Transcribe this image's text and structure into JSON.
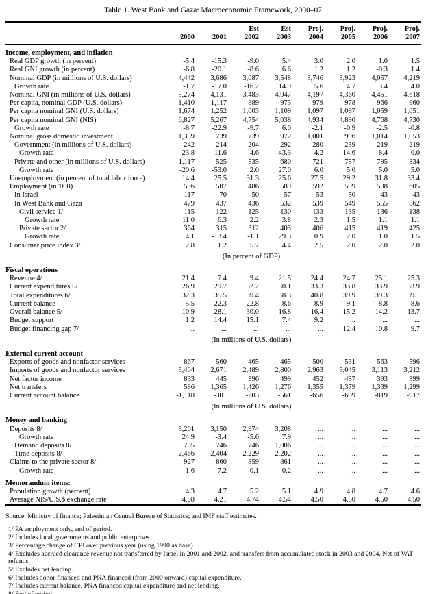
{
  "title": "Table 1. West Bank and Gaza: Macroeconomic Framework, 2000–07",
  "header": {
    "column_groups": [
      "",
      "",
      "Est",
      "Est",
      "Proj.",
      "Proj.",
      "Proj.",
      "Proj."
    ],
    "years": [
      "2000",
      "2001",
      "2002",
      "2003",
      "2004",
      "2005",
      "2006",
      "2007"
    ]
  },
  "sections": [
    {
      "unit_note": null,
      "title": "Income, employment, and inflation",
      "rows": [
        {
          "label": "Real GDP growth (in percent)",
          "indent": 1,
          "values": [
            "-5.4",
            "-15.3",
            "-9.0",
            "5.4",
            "3.0",
            "2.0",
            "1.0",
            "1.5"
          ]
        },
        {
          "label": "Real GNI growth (in percent)",
          "indent": 1,
          "values": [
            "-6.8",
            "-20.1",
            "-8.6",
            "6.6",
            "1.2",
            "1.2",
            "-0.3",
            "1.4"
          ]
        },
        {
          "label": "Nominal GDP (in millions of U.S. dollars)",
          "indent": 1,
          "values": [
            "4,442",
            "3,686",
            "3,087",
            "3,548",
            "3,746",
            "3,923",
            "4,057",
            "4,219"
          ]
        },
        {
          "label": "Growth rate",
          "indent": 2,
          "values": [
            "-1.7",
            "-17.0",
            "-16.2",
            "14.9",
            "5.6",
            "4.7",
            "3.4",
            "4.0"
          ]
        },
        {
          "label": "Nominal GNI (in millions of U.S. dollars)",
          "indent": 1,
          "values": [
            "5,274",
            "4,131",
            "3,483",
            "4,047",
            "4,197",
            "4,360",
            "4,451",
            "4,618"
          ]
        },
        {
          "label": "Per capita, nominal GDP (U.S. dollars)",
          "indent": 1,
          "values": [
            "1,410",
            "1,117",
            "889",
            "973",
            "979",
            "978",
            "966",
            "960"
          ]
        },
        {
          "label": "Per capita nominal GNI (U.S. dollars)",
          "indent": 1,
          "values": [
            "1,674",
            "1,252",
            "1,003",
            "1,109",
            "1,097",
            "1,087",
            "1,059",
            "1,051"
          ]
        },
        {
          "label": "Per capita nominal GNI (NIS)",
          "indent": 1,
          "values": [
            "6,827",
            "5,267",
            "4,754",
            "5,038",
            "4,934",
            "4,890",
            "4,768",
            "4,730"
          ]
        },
        {
          "label": "Growth rate",
          "indent": 2,
          "values": [
            "-8.7",
            "-22.9",
            "-9.7",
            "6.0",
            "-2.1",
            "-0.9",
            "-2.5",
            "-0.8"
          ]
        },
        {
          "label": "Nominal gross domestic investment",
          "indent": 1,
          "values": [
            "1,359",
            "739",
            "739",
            "972",
            "1,001",
            "996",
            "1,014",
            "1,053"
          ]
        },
        {
          "label": "Government  (in millions of U.S. dollars)",
          "indent": 2,
          "values": [
            "242",
            "214",
            "204",
            "292",
            "280",
            "239",
            "219",
            "219"
          ]
        },
        {
          "label": "Growth rate",
          "indent": 3,
          "values": [
            "-23.8",
            "-11.6",
            "-4.6",
            "43.3",
            "-4.2",
            "-14.6",
            "-8.4",
            "0.0"
          ]
        },
        {
          "label": "Private and other (in millions of U.S. dollars)",
          "indent": 2,
          "values": [
            "1,117",
            "525",
            "535",
            "680",
            "721",
            "757",
            "795",
            "834"
          ]
        },
        {
          "label": "Growth rate",
          "indent": 3,
          "values": [
            "-20.6",
            "-53.0",
            "2.0",
            "27.0",
            "6.0",
            "5.0",
            "5.0",
            "5.0"
          ]
        },
        {
          "label": "Unemployment (in percent of total labor force)",
          "indent": 1,
          "values": [
            "14.4",
            "25.5",
            "31.3",
            "25.6",
            "27.5",
            "29.2",
            "31.8",
            "33.4"
          ]
        },
        {
          "label": "Employment (in '000)",
          "indent": 1,
          "values": [
            "596",
            "507",
            "486",
            "589",
            "592",
            "599",
            "598",
            "605"
          ]
        },
        {
          "label": "In Israel",
          "indent": 2,
          "values": [
            "117",
            "70",
            "50",
            "57",
            "53",
            "50",
            "43",
            "43"
          ]
        },
        {
          "label": "In West Bank and Gaza",
          "indent": 2,
          "values": [
            "479",
            "437",
            "436",
            "532",
            "539",
            "549",
            "555",
            "562"
          ]
        },
        {
          "label": "Civil service 1/",
          "indent": 3,
          "values": [
            "115",
            "122",
            "125",
            "130",
            "133",
            "135",
            "136",
            "138"
          ]
        },
        {
          "label": "Growth rate",
          "indent": 4,
          "values": [
            "11.0",
            "6.3",
            "2.2",
            "3.8",
            "2.3",
            "1.5",
            "1.1",
            "1.1"
          ]
        },
        {
          "label": "Private sector 2/",
          "indent": 3,
          "values": [
            "364",
            "315",
            "312",
            "403",
            "406",
            "415",
            "419",
            "425"
          ]
        },
        {
          "label": "Growth rate",
          "indent": 4,
          "values": [
            "4.1",
            "-13.4",
            "-1.1",
            "29.3",
            "0.9",
            "2.0",
            "1.0",
            "1.5"
          ]
        },
        {
          "label": "Consumer price index 3/",
          "indent": 1,
          "values": [
            "2.8",
            "1.2",
            "5.7",
            "4.4",
            "2.5",
            "2.0",
            "2.0",
            "2.0"
          ]
        }
      ]
    },
    {
      "unit_note": "(In percent of GDP)",
      "title": "Fiscal operations",
      "rows": [
        {
          "label": "Revenue 4/",
          "indent": 1,
          "values": [
            "21.4",
            "7.4",
            "9.4",
            "21.5",
            "24.4",
            "24.7",
            "25.1",
            "25.3"
          ]
        },
        {
          "label": "Current expenditures 5/",
          "indent": 1,
          "values": [
            "26.9",
            "29.7",
            "32.2",
            "30.1",
            "33.3",
            "33.8",
            "33.9",
            "33.9"
          ]
        },
        {
          "label": "Total expenditures 6/",
          "indent": 1,
          "values": [
            "32.3",
            "35.5",
            "39.4",
            "38.3",
            "40.8",
            "39.9",
            "39.3",
            "39.1"
          ]
        },
        {
          "label": "Current balance",
          "indent": 1,
          "values": [
            "-5.5",
            "-22.3",
            "-22.8",
            "-8.6",
            "-8.9",
            "-9.1",
            "-8.8",
            "-8.6"
          ]
        },
        {
          "label": "Overall balance 5/",
          "indent": 1,
          "values": [
            "-10.9",
            "-28.1",
            "-30.0",
            "-16.8",
            "-16.4",
            "-15.2",
            "-14.2",
            "-13.7"
          ]
        },
        {
          "label": "Budget support",
          "indent": 1,
          "values": [
            "1.2",
            "14.4",
            "15.1",
            "7.4",
            "9.2",
            "...",
            "...",
            "..."
          ]
        },
        {
          "label": "Budget financing gap 7/",
          "indent": 1,
          "values": [
            "...",
            "...",
            "...",
            "...",
            "...",
            "12.4",
            "10.8",
            "9.7"
          ]
        }
      ]
    },
    {
      "unit_note": "(In millions of U.S. dollars)",
      "title": "External current account",
      "rows": [
        {
          "label": "Exports of goods and nonfactor services",
          "indent": 1,
          "values": [
            "867",
            "560",
            "465",
            "465",
            "500",
            "531",
            "563",
            "596"
          ]
        },
        {
          "label": "Imports of goods and nonfactor services",
          "indent": 1,
          "values": [
            "3,404",
            "2,671",
            "2,489",
            "2,800",
            "2,963",
            "3,045",
            "3,113",
            "3,212"
          ]
        },
        {
          "label": "Net factor income",
          "indent": 1,
          "values": [
            "833",
            "445",
            "396",
            "499",
            "452",
            "437",
            "393",
            "399"
          ]
        },
        {
          "label": "Net transfers",
          "indent": 1,
          "values": [
            "586",
            "1,365",
            "1,426",
            "1,276",
            "1,355",
            "1,379",
            "1,339",
            "1,299"
          ]
        },
        {
          "label": "Current account balance",
          "indent": 1,
          "values": [
            "-1,118",
            "-301",
            "-203",
            "-561",
            "-656",
            "-699",
            "-819",
            "-917"
          ]
        }
      ]
    },
    {
      "unit_note": "(In millions of U.S. dollars)",
      "title": "Money and banking",
      "rows": [
        {
          "label": "Deposits 8/",
          "indent": 1,
          "values": [
            "3,261",
            "3,150",
            "2,974",
            "3,208",
            "...",
            "...",
            "...",
            "..."
          ]
        },
        {
          "label": "Growth rate",
          "indent": 3,
          "values": [
            "24.9",
            "-3.4",
            "-5.6",
            "7.9",
            "...",
            "...",
            "...",
            "..."
          ]
        },
        {
          "label": "Demand deposits 8/",
          "indent": 2,
          "values": [
            "795",
            "746",
            "746",
            "1,006",
            "...",
            "...",
            "...",
            "..."
          ]
        },
        {
          "label": "Time deposits 8/",
          "indent": 2,
          "values": [
            "2,466",
            "2,404",
            "2,229",
            "2,202",
            "...",
            "...",
            "...",
            "..."
          ]
        },
        {
          "label": "Claims to the private sector 8/",
          "indent": 1,
          "values": [
            "927",
            "860",
            "859",
            "861",
            "...",
            "...",
            "...",
            "..."
          ]
        },
        {
          "label": "Growth rate",
          "indent": 3,
          "values": [
            "1.6",
            "-7.2",
            "-0.1",
            "0.2",
            "...",
            "...",
            "...",
            "..."
          ]
        }
      ]
    },
    {
      "unit_note": null,
      "title": "Memorandum items:",
      "rows": [
        {
          "label": "Population growth (percent)",
          "indent": 1,
          "values": [
            "4.3",
            "4.7",
            "5.2",
            "5.1",
            "4.9",
            "4.8",
            "4.7",
            "4.6"
          ]
        },
        {
          "label": "Average NIS/U.S.$ exchange rate",
          "indent": 1,
          "values": [
            "4.08",
            "4.21",
            "4.74",
            "4.54",
            "4.50",
            "4.50",
            "4.50",
            "4.50"
          ]
        }
      ]
    }
  ],
  "source": "Source:  Ministry of finance; Palestinian Central Bureau of Statistics; and IMF staff estimates.",
  "footnotes": [
    "1/ PA employment only, end of period.",
    "2/ Includes local governments and public enterprises.",
    "3/ Percentage change of CPI over previous year (using 1990 as base).",
    "4/ Excludes accrued clearance revenue not transferred by Israel in 2001 and 2002, and transfers from accumulated stock in 2003 and 2004. Net of VAT refunds.",
    "5/ Excludes net lending.",
    "6/ Includes donor financed and PNA financed (from 2000 onward) capital expenditure.",
    "7/ Includes current balance, PNA financed capital expenditure and net lending.",
    "8/ End of period."
  ]
}
